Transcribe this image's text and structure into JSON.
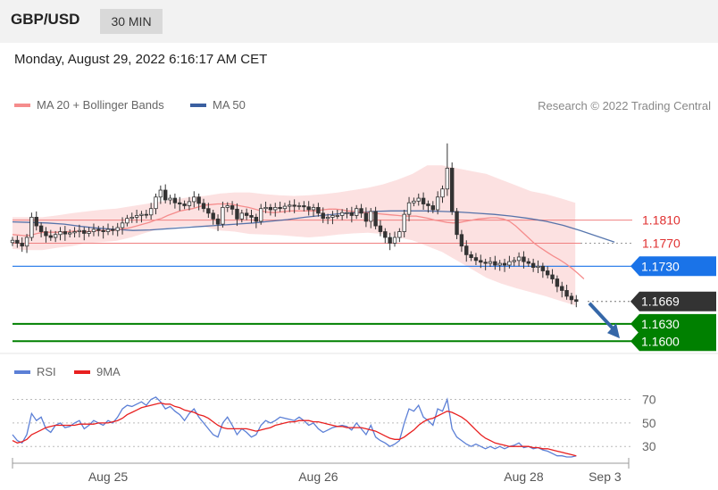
{
  "header": {
    "pair": "GBP/USD",
    "timeframe": "30 MIN"
  },
  "datetime": "Monday, August 29, 2022 6:16:17 AM CET",
  "credit": "Research © 2022 Trading Central",
  "colors": {
    "ma20": "#f58c8c",
    "ma50": "#3a5fa0",
    "band_fill": "#fbd9d9",
    "candle": "#333333",
    "support": "#008000",
    "resistance_blue": "#1a73e8",
    "current": "#333333",
    "arrow": "#3567a8",
    "rsi": "#5b7fd6",
    "ma9": "#e82020"
  },
  "chart_data": [
    {
      "type": "candlestick",
      "legend": [
        {
          "name": "MA 20 + Bollinger Bands",
          "color": "#f58c8c"
        },
        {
          "name": "MA 50",
          "color": "#3a5fa0"
        }
      ],
      "ylim": [
        1.1585,
        1.1975
      ],
      "xlim": [
        0,
        130
      ],
      "x_ticks": [
        {
          "x": 20,
          "label": "Aug 25"
        },
        {
          "x": 64,
          "label": "Aug 26"
        },
        {
          "x": 107,
          "label": "Aug 28"
        },
        {
          "x": 124,
          "label": "Sep 3"
        }
      ],
      "levels": [
        {
          "value": 1.181,
          "label": "1.1810",
          "style": "red-line"
        },
        {
          "value": 1.177,
          "label": "1.1770",
          "style": "red-dotted"
        },
        {
          "value": 1.173,
          "label": "1.1730",
          "style": "blue-tag"
        },
        {
          "value": 1.1669,
          "label": "1.1669",
          "style": "current-tag"
        },
        {
          "value": 1.163,
          "label": "1.1630",
          "style": "green-tag"
        },
        {
          "value": 1.16,
          "label": "1.1600",
          "style": "green-tag"
        }
      ],
      "candles_close": [
        1.1775,
        1.177,
        1.1765,
        1.178,
        1.1815,
        1.18,
        1.179,
        1.1783,
        1.178,
        1.1785,
        1.179,
        1.1786,
        1.1788,
        1.179,
        1.1792,
        1.1787,
        1.179,
        1.1794,
        1.1792,
        1.179,
        1.1794,
        1.1792,
        1.1797,
        1.1805,
        1.1813,
        1.1815,
        1.1818,
        1.182,
        1.1819,
        1.183,
        1.185,
        1.1862,
        1.1845,
        1.1848,
        1.184,
        1.1838,
        1.1835,
        1.1842,
        1.185,
        1.1839,
        1.183,
        1.1822,
        1.1812,
        1.1803,
        1.1832,
        1.1835,
        1.1829,
        1.1812,
        1.1822,
        1.1818,
        1.1815,
        1.1808,
        1.183,
        1.1832,
        1.1828,
        1.1832,
        1.183,
        1.1834,
        1.1836,
        1.1834,
        1.1835,
        1.1833,
        1.1828,
        1.1832,
        1.1822,
        1.1813,
        1.1815,
        1.1818,
        1.1818,
        1.1823,
        1.1823,
        1.1818,
        1.183,
        1.1822,
        1.1808,
        1.1825,
        1.18,
        1.179,
        1.178,
        1.177,
        1.178,
        1.179,
        1.182,
        1.184,
        1.1843,
        1.1848,
        1.1838,
        1.1835,
        1.1828,
        1.185,
        1.1864,
        1.19,
        1.1825,
        1.1785,
        1.1765,
        1.175,
        1.1745,
        1.174,
        1.1737,
        1.1735,
        1.1738,
        1.1732,
        1.1735,
        1.1732,
        1.1738,
        1.174,
        1.1746,
        1.1738,
        1.1735,
        1.1728,
        1.173,
        1.1722,
        1.1715,
        1.1708,
        1.1695,
        1.1688,
        1.1678,
        1.1672,
        1.1669
      ],
      "ma20": [
        1.1785,
        1.1784,
        1.1783,
        1.1784,
        1.1787,
        1.1789,
        1.1789,
        1.1789,
        1.1789,
        1.179,
        1.1791,
        1.179,
        1.179,
        1.1791,
        1.1792,
        1.1792,
        1.1792,
        1.1794,
        1.1795,
        1.1797,
        1.18,
        1.1803,
        1.1806,
        1.181,
        1.1813,
        1.1818,
        1.1822,
        1.1826,
        1.1828,
        1.183,
        1.1833,
        1.1836,
        1.1837,
        1.1838,
        1.1838,
        1.1838,
        1.1836,
        1.1834,
        1.1832,
        1.1829,
        1.1826,
        1.1824,
        1.1823,
        1.1824,
        1.1825,
        1.1826,
        1.1826,
        1.1826,
        1.1826,
        1.1826,
        1.1828,
        1.1829,
        1.1829,
        1.1828,
        1.1826,
        1.1825,
        1.1824,
        1.1823,
        1.1822,
        1.1821,
        1.182,
        1.1819,
        1.1818,
        1.1817,
        1.1817,
        1.1817,
        1.1815,
        1.1813,
        1.181,
        1.1808,
        1.1806,
        1.1805,
        1.1806,
        1.1808,
        1.181,
        1.1812,
        1.1813,
        1.1814,
        1.1814,
        1.1812,
        1.1808,
        1.18,
        1.179,
        1.178,
        1.177,
        1.1762,
        1.1755,
        1.1748,
        1.1742,
        1.1735,
        1.1727,
        1.1718,
        1.1708
      ],
      "ma20_x0": 0,
      "band_upper": [
        1.1815,
        1.1815,
        1.1815,
        1.1818,
        1.1822,
        1.1825,
        1.1828,
        1.183,
        1.1834,
        1.1838,
        1.1842,
        1.1846,
        1.185,
        1.1852,
        1.1856,
        1.1858,
        1.1858,
        1.1855,
        1.1853,
        1.1852,
        1.1853,
        1.1855,
        1.1858,
        1.1862,
        1.1866,
        1.1872,
        1.188,
        1.189,
        1.1905,
        1.1905,
        1.19,
        1.1895,
        1.189,
        1.188,
        1.187,
        1.186,
        1.1855,
        1.1848,
        1.184
      ],
      "band_lower": [
        1.176,
        1.1758,
        1.1758,
        1.1762,
        1.1765,
        1.177,
        1.1772,
        1.1774,
        1.178,
        1.1788,
        1.1795,
        1.1798,
        1.18,
        1.1798,
        1.1792,
        1.179,
        1.1786,
        1.1785,
        1.1784,
        1.1782,
        1.178,
        1.1782,
        1.1785,
        1.1787,
        1.1788,
        1.1786,
        1.178,
        1.1775,
        1.1765,
        1.1755,
        1.174,
        1.1725,
        1.171,
        1.17,
        1.1692,
        1.1685,
        1.1678,
        1.167,
        1.1662
      ],
      "band_step": 3.1,
      "ma50": [
        1.1807,
        1.1806,
        1.1805,
        1.1803,
        1.1799,
        1.1796,
        1.1794,
        1.1792,
        1.1793,
        1.1795,
        1.1797,
        1.1799,
        1.1801,
        1.1803,
        1.1805,
        1.1808,
        1.1811,
        1.1815,
        1.1818,
        1.1821,
        1.1823,
        1.1825,
        1.1826,
        1.1826,
        1.1826,
        1.1825,
        1.1824,
        1.1822,
        1.182,
        1.1817,
        1.1813,
        1.1808,
        1.1801,
        1.1792,
        1.1782,
        1.1772
      ],
      "ma50_step": 3.6
    },
    {
      "type": "line",
      "legend": [
        {
          "name": "RSI",
          "color": "#5b7fd6"
        },
        {
          "name": "9MA",
          "color": "#e82020"
        }
      ],
      "ylim": [
        18,
        78
      ],
      "y_ticks": [
        70,
        50,
        30
      ],
      "rsi": [
        40,
        35,
        33,
        40,
        58,
        52,
        55,
        45,
        42,
        48,
        50,
        46,
        47,
        50,
        52,
        45,
        48,
        52,
        50,
        48,
        52,
        50,
        55,
        62,
        65,
        64,
        66,
        68,
        65,
        70,
        72,
        68,
        62,
        64,
        60,
        57,
        52,
        58,
        62,
        55,
        50,
        45,
        40,
        38,
        50,
        55,
        48,
        40,
        45,
        42,
        38,
        40,
        48,
        52,
        50,
        52,
        55,
        54,
        53,
        52,
        55,
        52,
        48,
        50,
        45,
        42,
        44,
        46,
        47,
        48,
        47,
        44,
        50,
        45,
        40,
        48,
        38,
        35,
        33,
        30,
        32,
        35,
        50,
        62,
        60,
        65,
        55,
        52,
        48,
        62,
        60,
        70,
        45,
        38,
        35,
        32,
        30,
        32,
        30,
        28,
        30,
        28,
        30,
        28,
        30,
        31,
        33,
        29,
        30,
        28,
        29,
        27,
        26,
        24,
        22,
        22,
        21,
        21,
        22
      ],
      "ma9": [
        35,
        33,
        34,
        36,
        40,
        42,
        44,
        46,
        47,
        48,
        48,
        48,
        48,
        48,
        49,
        49,
        49,
        49,
        50,
        50,
        50,
        51,
        52,
        54,
        57,
        59,
        61,
        63,
        64,
        65,
        66,
        67,
        66,
        66,
        64,
        63,
        61,
        60,
        59,
        57,
        56,
        54,
        51,
        48,
        46,
        45,
        45,
        45,
        45,
        45,
        44,
        43,
        44,
        45,
        46,
        48,
        49,
        50,
        51,
        51,
        52,
        52,
        52,
        51,
        51,
        50,
        49,
        48,
        47,
        47,
        46,
        46,
        46,
        46,
        45,
        44,
        43,
        41,
        39,
        37,
        36,
        36,
        38,
        41,
        44,
        48,
        51,
        53,
        54,
        56,
        58,
        60,
        59,
        57,
        55,
        52,
        48,
        44,
        40,
        37,
        35,
        33,
        32,
        31,
        30,
        30,
        30,
        30,
        30,
        29,
        29,
        28,
        28,
        27,
        26,
        25,
        24,
        23,
        22
      ]
    }
  ]
}
